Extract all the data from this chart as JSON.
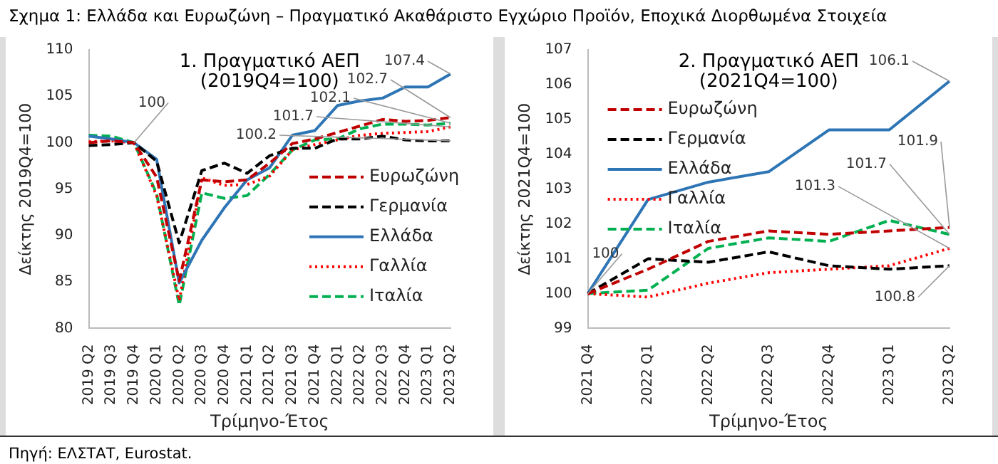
{
  "chart_data": [
    {
      "type": "line",
      "title": "1. Πραγματικό ΑΕΠ\n(2019Q4=100)",
      "xlabel": "Τρίμηνο-Έτος",
      "ylabel": "Δείκτης 2019Q4=100",
      "categories": [
        "2019 Q2",
        "2019 Q3",
        "2019 Q4",
        "2020 Q1",
        "2020 Q2",
        "2020 Q3",
        "2020 Q4",
        "2021 Q1",
        "2021 Q2",
        "2021 Q3",
        "2021 Q4",
        "2022 Q1",
        "2022 Q2",
        "2022 Q3",
        "2022 Q4",
        "2023 Q1",
        "2023 Q2"
      ],
      "series": [
        {
          "name": "Ευρωζώνη",
          "color": "#c00000",
          "line_style": "dashed",
          "values": [
            100.0,
            100.2,
            100.0,
            96.3,
            85.1,
            96.0,
            95.8,
            96.0,
            97.8,
            99.9,
            100.4,
            101.1,
            101.8,
            102.5,
            102.3,
            102.4,
            102.7
          ]
        },
        {
          "name": "Γερμανία",
          "color": "#000000",
          "line_style": "dashed",
          "values": [
            99.7,
            99.8,
            100.0,
            98.0,
            89.2,
            97.0,
            97.8,
            96.7,
            98.6,
            99.4,
            99.4,
            100.4,
            100.4,
            100.7,
            100.3,
            100.2,
            100.2
          ]
        },
        {
          "name": "Ελλάδα",
          "color": "#2e75b6",
          "line_style": "solid",
          "values": [
            100.7,
            100.4,
            100.0,
            98.2,
            84.9,
            89.5,
            93.0,
            96.0,
            97.3,
            100.8,
            101.3,
            104.0,
            104.5,
            104.8,
            106.0,
            106.0,
            107.4
          ]
        },
        {
          "name": "Γαλλία",
          "color": "#ff0000",
          "line_style": "dotted",
          "values": [
            100.1,
            100.2,
            100.0,
            94.3,
            83.0,
            96.2,
            95.4,
            95.5,
            96.4,
            99.2,
            99.8,
            100.3,
            100.8,
            101.0,
            101.1,
            101.2,
            101.7
          ]
        },
        {
          "name": "Ιταλία",
          "color": "#00b050",
          "line_style": "dashed",
          "values": [
            100.8,
            100.7,
            100.0,
            94.5,
            82.5,
            94.6,
            94.0,
            94.3,
            96.6,
            99.2,
            100.3,
            100.4,
            101.5,
            102.0,
            102.0,
            101.9,
            102.1
          ]
        }
      ],
      "ylim": [
        80,
        110
      ],
      "yticks": [
        80,
        85,
        90,
        95,
        100,
        105,
        110
      ],
      "legend": "right",
      "annotations": [
        "Σχημα 1: Ελλάδα και Ευρωζώνη – Πραγματικό Ακαθάριστο Εγχώριο Προϊόν, Εποχικά Διορθωμένα Στοιχεία",
        "Πηγή: ΕΛΣΤΑΤ, Eurostat.",
        {
          "text": "100",
          "x": "2019 Q4",
          "y": 100
        },
        {
          "text": "107.4",
          "x": "2023 Q2",
          "y": 107.4
        },
        {
          "text": "102.7",
          "x": "2023 Q2",
          "y": 102.7
        },
        {
          "text": "102.1",
          "x": "2023 Q2",
          "y": 102.1
        },
        {
          "text": "101.7",
          "x": "2023 Q2",
          "y": 101.7
        },
        {
          "text": "100.2",
          "x": "2023 Q2",
          "y": 100.2
        }
      ]
    },
    {
      "type": "line",
      "title": "2. Πραγματικό ΑΕΠ\n(2021Q4=100)",
      "xlabel": "Τρίμηνο-Έτος",
      "ylabel": "Δείκτης 2021Q4=100",
      "categories": [
        "2021 Q4",
        "2022 Q1",
        "2022 Q2",
        "2022 Q3",
        "2022 Q4",
        "2023 Q1",
        "2023 Q2"
      ],
      "series": [
        {
          "name": "Ευρωζώνη",
          "color": "#c00000",
          "line_style": "dashed",
          "values": [
            100,
            100.7,
            101.5,
            101.8,
            101.7,
            101.8,
            101.9
          ]
        },
        {
          "name": "Γερμανία",
          "color": "#000000",
          "line_style": "dashed",
          "values": [
            100,
            101.0,
            100.9,
            101.2,
            100.8,
            100.7,
            100.8
          ]
        },
        {
          "name": "Ελλάδα",
          "color": "#2e75b6",
          "line_style": "solid",
          "values": [
            100,
            102.7,
            103.2,
            103.5,
            104.7,
            104.7,
            106.1
          ]
        },
        {
          "name": "Γαλλία",
          "color": "#ff0000",
          "line_style": "dotted",
          "values": [
            100,
            99.9,
            100.3,
            100.6,
            100.7,
            100.8,
            101.3
          ]
        },
        {
          "name": "Ιταλία",
          "color": "#00b050",
          "line_style": "dashed",
          "values": [
            100,
            100.1,
            101.3,
            101.6,
            101.5,
            102.1,
            101.7
          ]
        }
      ],
      "ylim": [
        99,
        107
      ],
      "yticks": [
        99,
        100,
        101,
        102,
        103,
        104,
        105,
        106,
        107
      ],
      "legend": "top left",
      "annotations": [
        {
          "text": "100",
          "x": "2021 Q4",
          "y": 100
        },
        {
          "text": "106.1",
          "x": "2023 Q2",
          "y": 106.1
        },
        {
          "text": "101.9",
          "x": "2023 Q2",
          "y": 101.9
        },
        {
          "text": "101.7",
          "x": "2023 Q2",
          "y": 101.7
        },
        {
          "text": "101.3",
          "x": "2023 Q2",
          "y": 101.3
        },
        {
          "text": "100.8",
          "x": "2023 Q2",
          "y": 100.8
        }
      ]
    }
  ]
}
